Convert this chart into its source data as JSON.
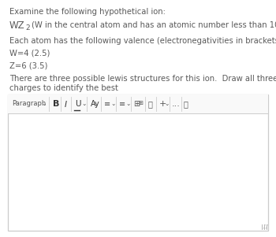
{
  "bg_color": "#ffffff",
  "text_color": "#5a5a5a",
  "line1": "Examine the following hypothetical ion:",
  "line3": "Each atom has the following valence (electronegativities in brackets):",
  "line4": "W=4 (2.5)",
  "line5": "Z=6 (3.5)",
  "line6a": "There are three possible lewis structures for this ion.  Draw all three and use formal",
  "line6b": "charges to identify the best",
  "toolbar_bg": "#f9f9f9",
  "toolbar_border": "#cccccc",
  "editor_bg": "#ffffff",
  "editor_border": "#cccccc",
  "sep_color": "#cccccc",
  "toolbar_text_color": "#555555",
  "body_fontsize": 7.2,
  "toolbar_fontsize": 6.0,
  "wz_fontsize": 8.5,
  "wz2_fontsize": 6.5,
  "figw": 3.5,
  "figh": 3.01,
  "dpi": 100
}
